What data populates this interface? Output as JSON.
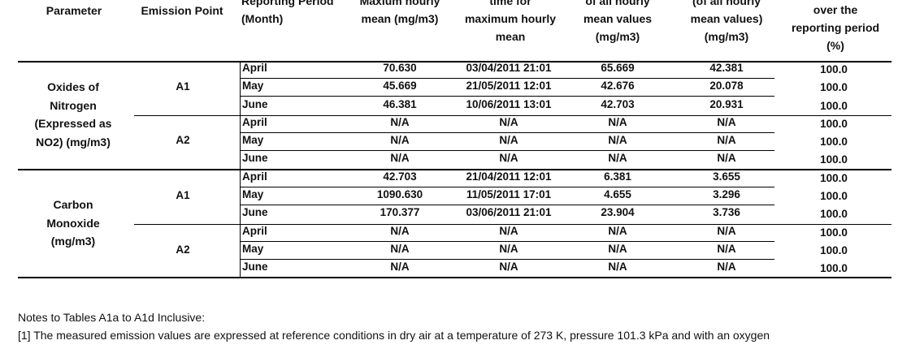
{
  "headers": {
    "parameter": "Parameter",
    "emission_point": "Emission Point",
    "reporting_period": [
      "Reporting Period",
      "(Month)"
    ],
    "max_hourly": [
      "Maxium hourly",
      "mean (mg/m3)"
    ],
    "time_max": [
      "time for",
      "maximum hourly",
      "mean"
    ],
    "mean_all": [
      "of all hourly",
      "mean values",
      "(mg/m3)"
    ],
    "of_all": [
      "(of all hourly",
      "mean values)",
      "(mg/m3)"
    ],
    "over_period": [
      "over the",
      "reporting period",
      "(%)"
    ]
  },
  "groups": [
    {
      "label": [
        "Oxides of",
        "Nitrogen",
        "(Expressed as",
        "NO2) (mg/m3)"
      ],
      "points": [
        {
          "name": "A1",
          "rows": [
            {
              "month": "April",
              "max": "70.630",
              "time": "03/04/2011 21:01",
              "mean": "65.669",
              "other": "42.381",
              "pct": "100.0"
            },
            {
              "month": "May",
              "max": "45.669",
              "time": "21/05/2011 12:01",
              "mean": "42.676",
              "other": "20.078",
              "pct": "100.0"
            },
            {
              "month": "June",
              "max": "46.381",
              "time": "10/06/2011 13:01",
              "mean": "42.703",
              "other": "20.931",
              "pct": "100.0"
            }
          ]
        },
        {
          "name": "A2",
          "rows": [
            {
              "month": "April",
              "max": "N/A",
              "time": "N/A",
              "mean": "N/A",
              "other": "N/A",
              "pct": "100.0"
            },
            {
              "month": "May",
              "max": "N/A",
              "time": "N/A",
              "mean": "N/A",
              "other": "N/A",
              "pct": "100.0"
            },
            {
              "month": "June",
              "max": "N/A",
              "time": "N/A",
              "mean": "N/A",
              "other": "N/A",
              "pct": "100.0"
            }
          ]
        }
      ]
    },
    {
      "label": [
        "Carbon",
        "Monoxide",
        "(mg/m3)"
      ],
      "points": [
        {
          "name": "A1",
          "rows": [
            {
              "month": "April",
              "max": "42.703",
              "time": "21/04/2011 12:01",
              "mean": "6.381",
              "other": "3.655",
              "pct": "100.0"
            },
            {
              "month": "May",
              "max": "1090.630",
              "time": "11/05/2011 17:01",
              "mean": "4.655",
              "other": "3.296",
              "pct": "100.0"
            },
            {
              "month": "June",
              "max": "170.377",
              "time": "03/06/2011 21:01",
              "mean": "23.904",
              "other": "3.736",
              "pct": "100.0"
            }
          ]
        },
        {
          "name": "A2",
          "rows": [
            {
              "month": "April",
              "max": "N/A",
              "time": "N/A",
              "mean": "N/A",
              "other": "N/A",
              "pct": "100.0"
            },
            {
              "month": "May",
              "max": "N/A",
              "time": "N/A",
              "mean": "N/A",
              "other": "N/A",
              "pct": "100.0"
            },
            {
              "month": "June",
              "max": "N/A",
              "time": "N/A",
              "mean": "N/A",
              "other": "N/A",
              "pct": "100.0"
            }
          ]
        }
      ]
    }
  ],
  "notes": {
    "title": "Notes to Tables A1a to A1d Inclusive:",
    "line1": "[1] The measured emission values are expressed at reference conditions in dry air at a temperature of 273 K, pressure 101.3 kPa and with an oxygen"
  }
}
